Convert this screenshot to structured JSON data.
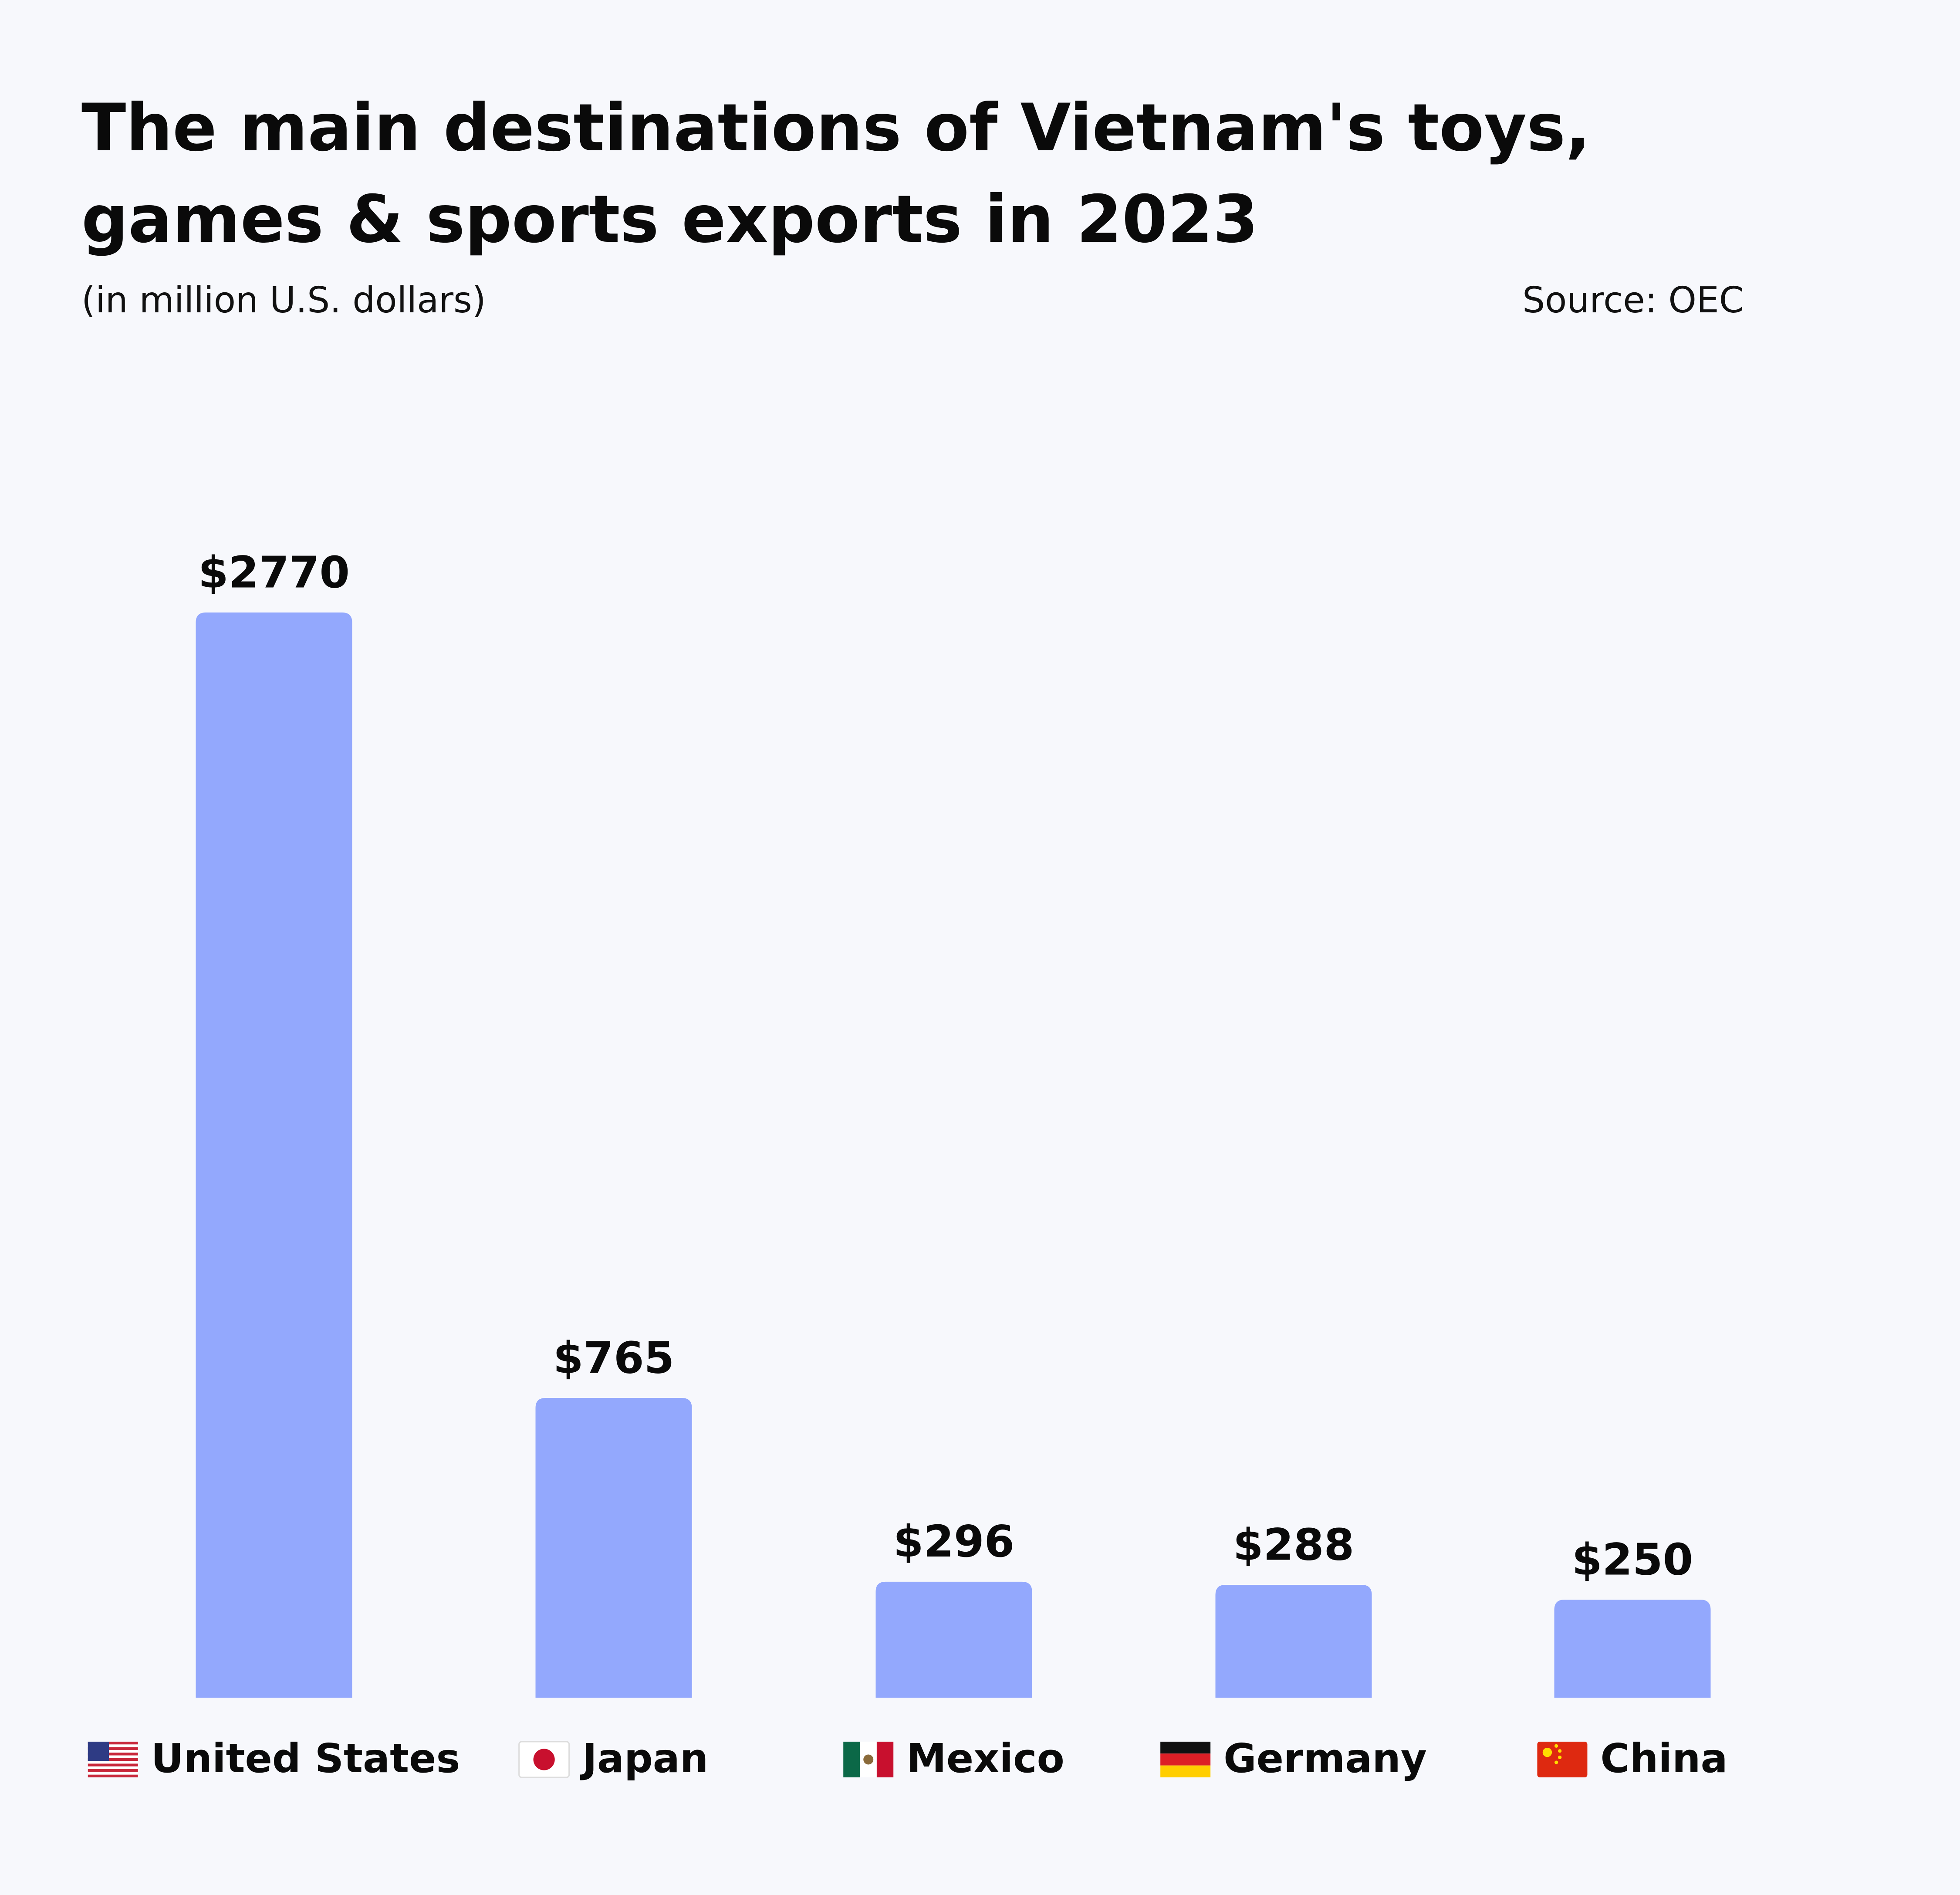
{
  "chart_data": {
    "type": "bar",
    "title": [
      "The main destinations of Vietnam's toys,",
      "games & sports exports in 2023"
    ],
    "subtitle": "(in million U.S. dollars)",
    "source": "Source: OEC",
    "categories": [
      "United States",
      "Japan",
      "Mexico",
      "Germany",
      "China"
    ],
    "values": [
      2770,
      765,
      296,
      288,
      250
    ],
    "value_labels": [
      "$2770",
      "$765",
      "$296",
      "$288",
      "$250"
    ],
    "color": "#93a8fd"
  }
}
